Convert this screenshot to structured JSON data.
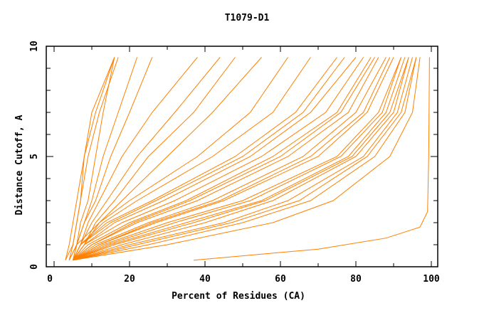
{
  "chart_data": {
    "type": "line",
    "title": "T1079-D1",
    "xlabel": "Percent of Residues (CA)",
    "ylabel": "Distance Cutoff, A",
    "xlim": [
      0,
      100
    ],
    "ylim": [
      0,
      10
    ],
    "xticks": [
      "0",
      "20",
      "40",
      "60",
      "80",
      "100"
    ],
    "yticks": [
      "0",
      "5",
      "10"
    ],
    "grid": false,
    "line_color": "#ff8000",
    "y_levels": [
      0.3,
      1,
      2,
      3,
      5,
      7,
      9.5
    ],
    "series": [
      {
        "x": [
          5,
          30,
          58,
          74,
          89,
          95,
          97
        ]
      },
      {
        "x": [
          5,
          25,
          50,
          68,
          85,
          93,
          96
        ]
      },
      {
        "x": [
          5,
          22,
          47,
          65,
          83,
          92,
          96
        ]
      },
      {
        "x": [
          5,
          20,
          45,
          62,
          82,
          91,
          95
        ]
      },
      {
        "x": [
          5,
          18,
          40,
          58,
          80,
          90,
          94
        ]
      },
      {
        "x": [
          5,
          16,
          37,
          56,
          79,
          89,
          94
        ]
      },
      {
        "x": [
          5,
          15,
          35,
          55,
          78,
          88,
          93
        ]
      },
      {
        "x": [
          5,
          14,
          32,
          52,
          76,
          87,
          92
        ]
      },
      {
        "x": [
          5,
          13,
          30,
          50,
          75,
          86,
          92
        ]
      },
      {
        "x": [
          5,
          12,
          27,
          45,
          70,
          83,
          90
        ]
      },
      {
        "x": [
          5,
          12,
          26,
          44,
          68,
          82,
          89
        ]
      },
      {
        "x": [
          5,
          11,
          25,
          42,
          66,
          80,
          88
        ]
      },
      {
        "x": [
          5,
          10,
          22,
          38,
          62,
          78,
          86
        ]
      },
      {
        "x": [
          5,
          10,
          21,
          36,
          60,
          76,
          85
        ]
      },
      {
        "x": [
          5,
          9,
          20,
          35,
          58,
          75,
          84
        ]
      },
      {
        "x": [
          5,
          8,
          18,
          32,
          55,
          72,
          82
        ]
      },
      {
        "x": [
          5,
          8,
          16,
          29,
          52,
          68,
          80
        ]
      },
      {
        "x": [
          5,
          7,
          15,
          27,
          50,
          66,
          77
        ]
      },
      {
        "x": [
          5,
          7,
          14,
          26,
          48,
          64,
          75
        ]
      },
      {
        "x": [
          5,
          7,
          13,
          22,
          42,
          58,
          68
        ]
      },
      {
        "x": [
          5,
          6,
          12,
          20,
          38,
          52,
          62
        ]
      },
      {
        "x": [
          5,
          8,
          12,
          18,
          30,
          42,
          55
        ]
      },
      {
        "x": [
          5,
          8,
          11,
          16,
          25,
          37,
          48
        ]
      },
      {
        "x": [
          5,
          7,
          10,
          14,
          22,
          32,
          44
        ]
      },
      {
        "x": [
          5,
          7,
          9,
          12,
          18,
          26,
          38
        ]
      },
      {
        "x": [
          4,
          6,
          8,
          11,
          15,
          20,
          26
        ]
      },
      {
        "x": [
          4,
          6,
          8,
          10,
          13,
          17,
          22
        ]
      },
      {
        "x": [
          3,
          5,
          6,
          7,
          9,
          12,
          17
        ]
      },
      {
        "x": [
          4,
          5,
          6,
          7,
          8,
          11,
          16
        ]
      },
      {
        "x": [
          3,
          4,
          5,
          6,
          8,
          10,
          16
        ]
      },
      {
        "x": [
          5,
          6,
          7,
          9,
          11,
          13,
          16
        ]
      },
      {
        "x": [
          37,
          70,
          88,
          97,
          99,
          99.3,
          99.5
        ],
        "y": [
          0.3,
          0.8,
          1.3,
          1.8,
          2.5,
          5,
          9.5
        ]
      }
    ]
  }
}
